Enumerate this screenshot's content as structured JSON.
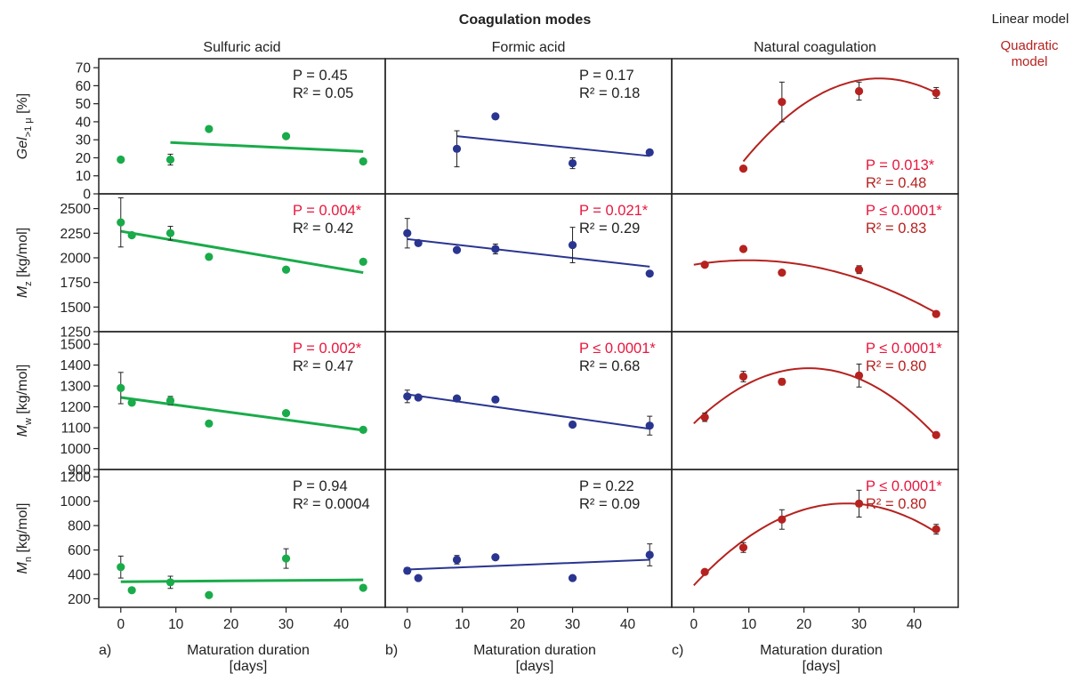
{
  "figure": {
    "supertitle": "Coagulation modes",
    "legend": {
      "linear": {
        "label": "Linear model",
        "color": "#222222"
      },
      "quadratic": {
        "label": "Quadratic\nmodel",
        "color": "#b5221f"
      }
    },
    "column_titles": [
      "Sulfuric acid",
      "Formic acid",
      "Natural coagulation"
    ],
    "panel_letters": [
      "a)",
      "b)",
      "c)"
    ],
    "xlabel_line1": "Maturation duration",
    "xlabel_line2": "[days]",
    "x_ticks": [
      0,
      10,
      20,
      30,
      40
    ],
    "significance_color": "#e8173d",
    "text_color": "#222222",
    "column_colors": [
      "#1aab4a",
      "#2a3590",
      "#b5221f"
    ],
    "rows": [
      {
        "ylabel_main": "Gel",
        "ylabel_sub": ">1 μ",
        "ylabel_unit": " [%]",
        "ylim": [
          0,
          75
        ],
        "ticks": [
          0,
          10,
          20,
          30,
          40,
          50,
          60,
          70
        ]
      },
      {
        "ylabel_main": "M",
        "ylabel_sub": "z",
        "ylabel_unit": " [kg/mol]",
        "ylim": [
          1250,
          2650
        ],
        "ticks": [
          1250,
          1500,
          1750,
          2000,
          2250,
          2500
        ]
      },
      {
        "ylabel_main": "M",
        "ylabel_sub": "w",
        "ylabel_unit": " [kg/mol]",
        "ylim": [
          900,
          1560
        ],
        "ticks": [
          900,
          1000,
          1100,
          1200,
          1300,
          1400,
          1500
        ]
      },
      {
        "ylabel_main": "M",
        "ylabel_sub": "n",
        "ylabel_unit": " [kg/mol]",
        "ylim": [
          130,
          1260
        ],
        "ticks": [
          200,
          400,
          600,
          800,
          1000,
          1200
        ]
      }
    ]
  },
  "chart_data": [
    {
      "type": "scatter",
      "row": 0,
      "col": 0,
      "x": [
        0,
        9,
        16,
        30,
        44
      ],
      "y": [
        19,
        null,
        36,
        32,
        18
      ],
      "y_actual": [
        19,
        19,
        36,
        32,
        18
      ],
      "err": [
        0,
        3,
        0,
        0,
        0
      ],
      "x_pts": [
        0,
        9,
        16,
        30,
        44
      ],
      "y_pts": [
        19,
        19,
        36,
        32,
        18
      ],
      "err_pts": [
        0,
        3,
        0,
        0,
        0
      ],
      "model": "linear",
      "fit": {
        "x": [
          9,
          44
        ],
        "y": [
          28.5,
          23.5
        ]
      },
      "P": "P  = 0.45",
      "R2": "R² = 0.05",
      "significant": false
    },
    {
      "type": "scatter",
      "row": 0,
      "col": 1,
      "x": [
        9,
        16,
        30,
        44
      ],
      "y": [
        25,
        43,
        17,
        23
      ],
      "x_pts": [
        9,
        16,
        30,
        44
      ],
      "y_pts": [
        25,
        43,
        17,
        23
      ],
      "err_pts": [
        10,
        0,
        3,
        0
      ],
      "model": "linear",
      "fit": {
        "x": [
          9,
          44
        ],
        "y": [
          32,
          21
        ]
      },
      "P": "P  = 0.17",
      "R2": "R² = 0.18",
      "significant": false
    },
    {
      "type": "scatter",
      "row": 0,
      "col": 2,
      "x_pts": [
        9,
        16,
        30,
        44
      ],
      "y_pts": [
        14,
        51,
        57,
        56
      ],
      "err_pts": [
        0,
        11,
        5,
        3
      ],
      "model": "quadratic",
      "fit": {
        "x": [
          9,
          33,
          44
        ],
        "y": [
          18,
          64,
          56
        ]
      },
      "P": "P  = 0.013*",
      "R2": "R² = 0.48",
      "significant": true
    },
    {
      "type": "scatter",
      "row": 1,
      "col": 0,
      "x_pts": [
        0,
        2,
        9,
        16,
        30,
        44
      ],
      "y_pts": [
        2360,
        2230,
        2250,
        2010,
        1880,
        1960
      ],
      "err_pts": [
        250,
        0,
        70,
        0,
        0,
        0
      ],
      "model": "linear",
      "fit": {
        "x": [
          0,
          44
        ],
        "y": [
          2270,
          1850
        ]
      },
      "P": "P  = 0.004*",
      "R2": "R² = 0.42",
      "significant": true
    },
    {
      "type": "scatter",
      "row": 1,
      "col": 1,
      "x_pts": [
        0,
        2,
        9,
        16,
        30,
        44
      ],
      "y_pts": [
        2250,
        2150,
        2080,
        2090,
        2130,
        1840
      ],
      "err_pts": [
        150,
        0,
        0,
        50,
        180,
        0
      ],
      "model": "linear",
      "fit": {
        "x": [
          0,
          44
        ],
        "y": [
          2190,
          1910
        ]
      },
      "P": "P  = 0.021*",
      "R2": "R² = 0.29",
      "significant": true
    },
    {
      "type": "scatter",
      "row": 1,
      "col": 2,
      "x_pts": [
        2,
        9,
        16,
        30,
        44
      ],
      "y_pts": [
        1930,
        2090,
        1850,
        1880,
        1430
      ],
      "err_pts": [
        0,
        0,
        0,
        40,
        0
      ],
      "model": "quadratic",
      "fit": {
        "x": [
          0,
          10,
          44
        ],
        "y": [
          1930,
          1975,
          1440
        ]
      },
      "P": "P  ≤ 0.0001*",
      "R2": "R² = 0.83",
      "significant": true
    },
    {
      "type": "scatter",
      "row": 2,
      "col": 0,
      "x_pts": [
        0,
        2,
        9,
        16,
        30,
        44
      ],
      "y_pts": [
        1290,
        1220,
        1230,
        1120,
        1170,
        1090
      ],
      "err_pts": [
        75,
        0,
        20,
        0,
        0,
        0
      ],
      "model": "linear",
      "fit": {
        "x": [
          0,
          44
        ],
        "y": [
          1245,
          1088
        ]
      },
      "P": "P  = 0.002*",
      "R2": "R² = 0.47",
      "significant": true
    },
    {
      "type": "scatter",
      "row": 2,
      "col": 1,
      "x_pts": [
        0,
        2,
        9,
        16,
        30,
        44
      ],
      "y_pts": [
        1250,
        1245,
        1240,
        1235,
        1115,
        1110
      ],
      "err_pts": [
        30,
        0,
        0,
        0,
        0,
        45
      ],
      "model": "linear",
      "fit": {
        "x": [
          0,
          44
        ],
        "y": [
          1260,
          1095
        ]
      },
      "P": "P  ≤ 0.0001*",
      "R2": "R² = 0.68",
      "significant": true
    },
    {
      "type": "scatter",
      "row": 2,
      "col": 2,
      "x_pts": [
        2,
        9,
        16,
        30,
        44
      ],
      "y_pts": [
        1150,
        1345,
        1320,
        1350,
        1065
      ],
      "err_pts": [
        20,
        25,
        15,
        55,
        0
      ],
      "model": "quadratic",
      "fit": {
        "x": [
          0,
          21,
          44
        ],
        "y": [
          1120,
          1385,
          1060
        ]
      },
      "P": "P  ≤ 0.0001*",
      "R2": "R² = 0.80",
      "significant": true
    },
    {
      "type": "scatter",
      "row": 3,
      "col": 0,
      "x_pts": [
        0,
        2,
        9,
        16,
        30,
        44
      ],
      "y_pts": [
        460,
        270,
        335,
        230,
        530,
        290
      ],
      "err_pts": [
        90,
        0,
        50,
        0,
        80,
        0
      ],
      "model": "linear",
      "fit": {
        "x": [
          0,
          44
        ],
        "y": [
          340,
          355
        ]
      },
      "P": "P  = 0.94",
      "R2": "R² = 0.0004",
      "significant": false
    },
    {
      "type": "scatter",
      "row": 3,
      "col": 1,
      "x_pts": [
        0,
        2,
        9,
        16,
        30,
        44
      ],
      "y_pts": [
        430,
        370,
        520,
        540,
        370,
        560
      ],
      "err_pts": [
        25,
        0,
        35,
        0,
        0,
        90
      ],
      "model": "linear",
      "fit": {
        "x": [
          0,
          44
        ],
        "y": [
          440,
          520
        ]
      },
      "P": "P  = 0.22",
      "R2": "R² = 0.09",
      "significant": false
    },
    {
      "type": "scatter",
      "row": 3,
      "col": 2,
      "x_pts": [
        2,
        9,
        16,
        30,
        44
      ],
      "y_pts": [
        420,
        620,
        850,
        980,
        770
      ],
      "err_pts": [
        0,
        40,
        80,
        110,
        40
      ],
      "model": "quadratic",
      "fit": {
        "x": [
          0,
          29,
          44
        ],
        "y": [
          310,
          980,
          745
        ]
      },
      "P": "P  ≤ 0.0001*",
      "R2": "R² = 0.80",
      "significant": true
    }
  ]
}
